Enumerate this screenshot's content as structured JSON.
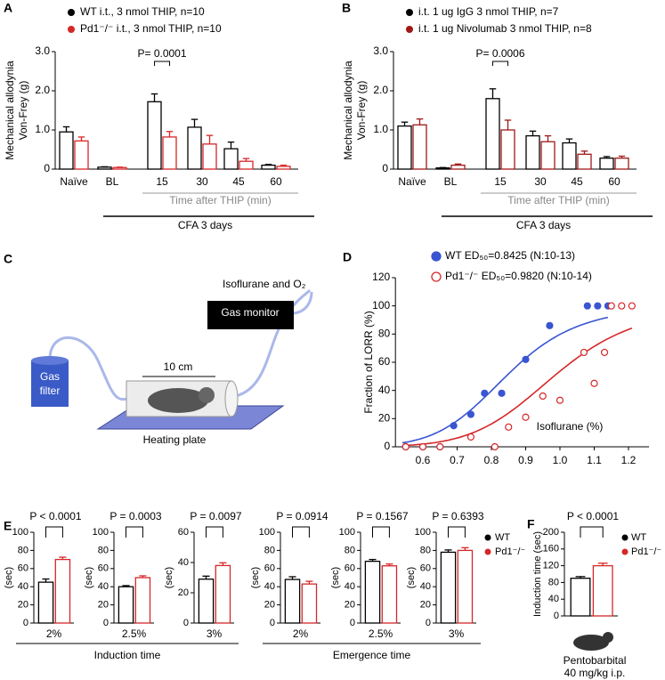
{
  "chart_data": [
    {
      "type": "bar",
      "panel": "A",
      "ylabel": [
        "Mechanical allodynia",
        "Von-Frey (g)"
      ],
      "categories": [
        "Naïve",
        "BL",
        "15",
        "30",
        "45",
        "60"
      ],
      "series": [
        {
          "name": "WT i.t., 3 nmol THIP, n=10",
          "color": "#000000",
          "values": [
            0.95,
            0.05,
            1.72,
            1.07,
            0.52,
            0.1
          ],
          "errors": [
            0.13,
            0.01,
            0.2,
            0.2,
            0.17,
            0.02
          ]
        },
        {
          "name": "Pd1⁻/⁻ i.t., 3 nmol THIP, n=10",
          "color": "#d62728",
          "values": [
            0.72,
            0.04,
            0.82,
            0.64,
            0.2,
            0.07
          ],
          "errors": [
            0.1,
            0.01,
            0.14,
            0.22,
            0.07,
            0.03
          ]
        }
      ],
      "ylim": [
        0,
        3
      ],
      "yticks": [
        0,
        {
          "value": 1,
          "label": "1.0"
        },
        {
          "value": 2,
          "label": "2.0"
        },
        {
          "value": 3,
          "label": "3.0"
        }
      ],
      "annotation": "P= 0.0001",
      "xlabel": "Time after THIP (min)",
      "group_label": "CFA 3 days"
    },
    {
      "type": "bar",
      "panel": "B",
      "ylabel": [
        "Mechanical allodynia",
        "Von-Frey (g)"
      ],
      "categories": [
        "Naïve",
        "BL",
        "15",
        "30",
        "45",
        "60"
      ],
      "series": [
        {
          "name": "i.t. 1 ug IgG 3 nmol THIP, n=7",
          "color": "#000000",
          "values": [
            1.1,
            0.03,
            1.8,
            0.85,
            0.67,
            0.28
          ],
          "errors": [
            0.1,
            0.01,
            0.25,
            0.12,
            0.1,
            0.04
          ]
        },
        {
          "name": "i.t. 1 ug Nivolumab 3 nmol THIP, n=8",
          "color": "#a01818",
          "values": [
            1.13,
            0.1,
            1.0,
            0.7,
            0.38,
            0.28
          ],
          "errors": [
            0.15,
            0.03,
            0.25,
            0.15,
            0.08,
            0.05
          ]
        }
      ],
      "ylim": [
        0,
        3
      ],
      "yticks": [
        0,
        {
          "value": 1,
          "label": "1.0"
        },
        {
          "value": 2,
          "label": "2.0"
        },
        {
          "value": 3,
          "label": "3.0"
        }
      ],
      "annotation": "P= 0.0006",
      "xlabel": "Time after THIP (min)",
      "group_label": "CFA 3 days"
    },
    {
      "type": "scatter",
      "panel": "D",
      "ylabel": "Fraction of LORR (%)",
      "xlabel": "Isoflurane (%)",
      "xlim": [
        0.52,
        1.26
      ],
      "xticks": [
        0.6,
        0.7,
        0.8,
        0.9,
        {
          "value": 1,
          "label": "1.0"
        },
        1.1,
        1.2
      ],
      "ylim": [
        0,
        120
      ],
      "yticks": [
        0,
        20,
        40,
        60,
        80,
        100,
        120
      ],
      "series": [
        {
          "name": "WT ED₅₀=0.8425 (N:10-13)",
          "ed50": 0.8425,
          "color": "#3a55d0",
          "filled": true,
          "x": [
            0.55,
            0.6,
            0.65,
            0.69,
            0.74,
            0.78,
            0.83,
            0.9,
            0.97,
            1.08,
            1.11,
            1.14
          ],
          "values": [
            0,
            0,
            0,
            15,
            23,
            38,
            38,
            62,
            86,
            100,
            100,
            100
          ]
        },
        {
          "name": "Pd1⁻/⁻ ED₅₀=0.9820 (N:10-14)",
          "ed50": 0.982,
          "color": "#d62728",
          "filled": false,
          "x": [
            0.55,
            0.6,
            0.65,
            0.74,
            0.81,
            0.85,
            0.9,
            0.95,
            1.0,
            1.07,
            1.1,
            1.13,
            1.15,
            1.18,
            1.21
          ],
          "values": [
            0,
            0,
            0,
            7,
            0,
            14,
            21,
            36,
            33,
            67,
            45,
            67,
            100,
            100,
            100
          ]
        }
      ]
    },
    {
      "type": "paired-bars",
      "panel": "E",
      "legend": [
        {
          "name": "WT",
          "color": "#000000"
        },
        {
          "name": "Pd1⁻/⁻",
          "color": "#d62728"
        }
      ],
      "groups": [
        {
          "label": "Induction time",
          "plots": [
            {
              "category": "2%",
              "ylabel": "(sec)",
              "p_label": "P < 0.0001",
              "values": [
                45,
                70
              ],
              "errors": [
                3.5,
                2.5
              ],
              "ylim": [
                0,
                100
              ],
              "yticks": [
                0,
                20,
                40,
                60,
                80,
                100
              ]
            },
            {
              "category": "2.5%",
              "ylabel": "(sec)",
              "p_label": "P = 0.0003",
              "values": [
                40,
                50
              ],
              "errors": [
                1.2,
                2
              ],
              "ylim": [
                0,
                100
              ],
              "yticks": [
                0,
                20,
                40,
                60,
                80,
                100
              ]
            },
            {
              "category": "3%",
              "ylabel": "(sec)",
              "p_label": "P = 0.0097",
              "values": [
                29,
                38
              ],
              "errors": [
                2,
                1.8
              ],
              "ylim": [
                0,
                60
              ],
              "yticks": [
                0,
                20,
                40,
                60
              ]
            }
          ]
        },
        {
          "label": "Emergence time",
          "plots": [
            {
              "category": "2%",
              "ylabel": "(sec)",
              "p_label": "P = 0.0914",
              "values": [
                48,
                43
              ],
              "errors": [
                3,
                3
              ],
              "ylim": [
                0,
                100
              ],
              "yticks": [
                0,
                20,
                40,
                60,
                80,
                100
              ]
            },
            {
              "category": "2.5%",
              "ylabel": "(sec)",
              "p_label": "P = 0.1567",
              "values": [
                68,
                63
              ],
              "errors": [
                2,
                2
              ],
              "ylim": [
                0,
                100
              ],
              "yticks": [
                0,
                20,
                40,
                60,
                80,
                100
              ]
            },
            {
              "category": "3%",
              "ylabel": "(sec)",
              "p_label": "P = 0.6393",
              "values": [
                78,
                80
              ],
              "errors": [
                2.5,
                3
              ],
              "ylim": [
                0,
                100
              ],
              "yticks": [
                0,
                20,
                40,
                60,
                80,
                100
              ]
            }
          ]
        }
      ]
    },
    {
      "type": "bar-pair",
      "panel": "F",
      "ylabel": "Induction time (sec)",
      "p_label": "P < 0.0001",
      "legend": [
        {
          "name": "WT",
          "color": "#000000"
        },
        {
          "name": "Pd1⁻/⁻",
          "color": "#d62728"
        }
      ],
      "values": [
        90,
        120
      ],
      "errors": [
        4,
        6
      ],
      "ylim": [
        0,
        200
      ],
      "yticks": [
        0,
        40,
        80,
        120,
        160,
        200
      ],
      "caption": [
        "Pentobarbital",
        "40 mg/kg i.p."
      ]
    }
  ],
  "diagram": {
    "panel": "C",
    "gases": "Isoflurane and O₂",
    "monitor": "Gas monitor",
    "size": "10 cm",
    "filter": [
      "Gas",
      "filter"
    ],
    "plate": "Heating plate"
  }
}
